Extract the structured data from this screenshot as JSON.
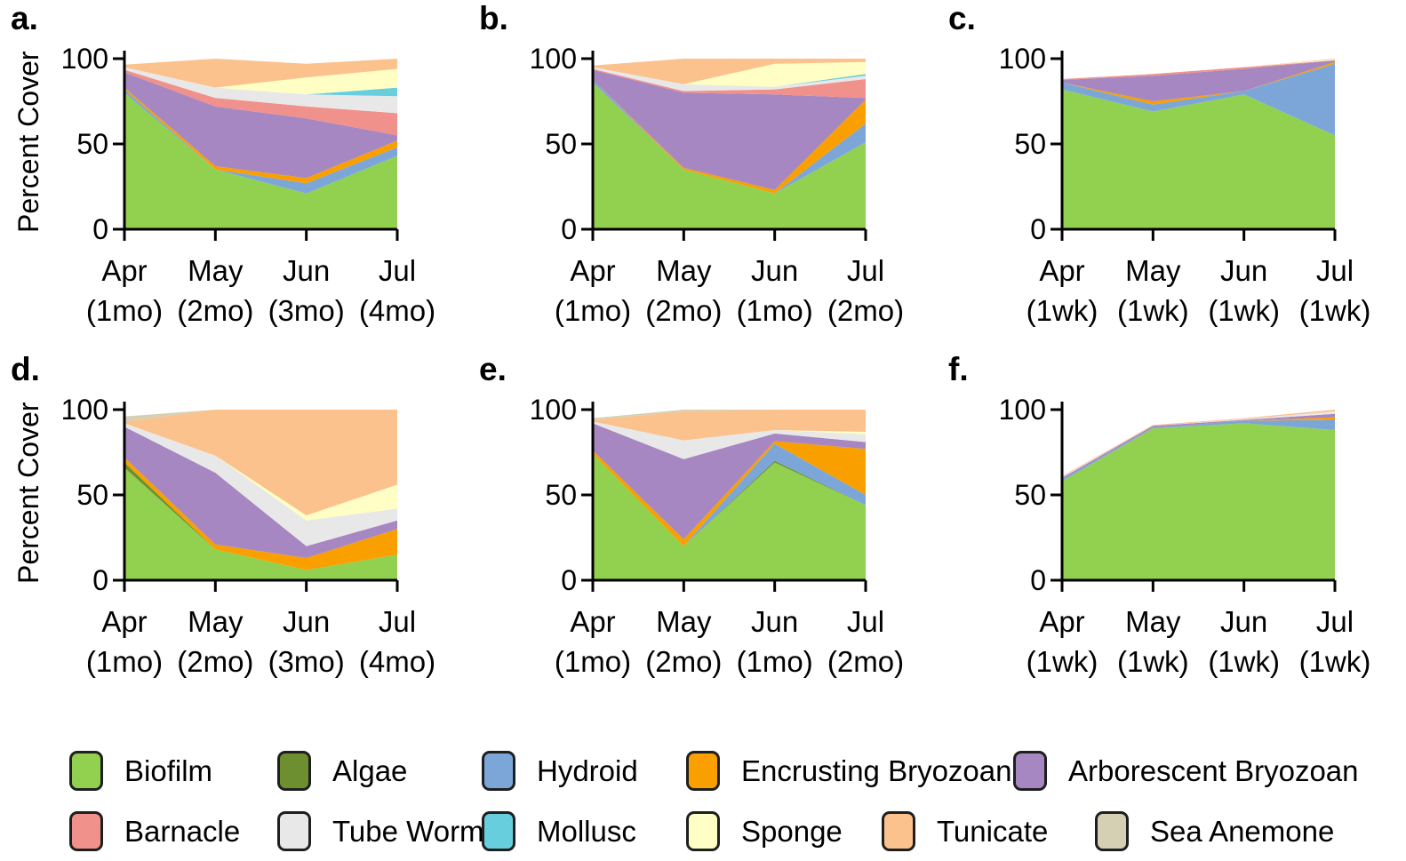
{
  "figure": {
    "ylabel": "Percent Cover",
    "yticks": [
      100,
      50,
      0
    ],
    "ylim": [
      0,
      100
    ]
  },
  "species": [
    "Biofilm",
    "Algae",
    "Hydroid",
    "Encrusting Bryozoan",
    "Arborescent Bryozoan",
    "Barnacle",
    "Tube Worm",
    "Mollusc",
    "Sponge",
    "Tunicate",
    "Sea Anemone"
  ],
  "colors": {
    "Biofilm": "#92D050",
    "Algae": "#6D8F2F",
    "Hydroid": "#7CA6D8",
    "Encrusting Bryozoan": "#F9A000",
    "Arborescent Bryozoan": "#A687C1",
    "Barnacle": "#F0918C",
    "Tube Worm": "#E8E8E8",
    "Mollusc": "#67CEDE",
    "Sponge": "#FFFFC5",
    "Tunicate": "#FBC28E",
    "Sea Anemone": "#D5D0B4",
    "axis": "#000000"
  },
  "legend": {
    "rows": [
      [
        "Biofilm",
        "Algae",
        "Hydroid",
        "Encrusting Bryozoan",
        "Arborescent Bryozoan"
      ],
      [
        "Barnacle",
        "Tube Worm",
        "Mollusc",
        "Sponge",
        "Tunicate",
        "Sea Anemone"
      ]
    ]
  },
  "chart_data": [
    {
      "label": "a.",
      "type": "area",
      "stacked": true,
      "categories": [
        "Apr",
        "May",
        "Jun",
        "Jul"
      ],
      "interval_labels": [
        "(1mo)",
        "(2mo)",
        "(3mo)",
        "(4mo)"
      ],
      "xlabel": "",
      "ylabel": "Percent Cover",
      "ylim": [
        0,
        100
      ],
      "series": [
        {
          "name": "Biofilm",
          "values": [
            80,
            35,
            21,
            43
          ]
        },
        {
          "name": "Algae",
          "values": [
            0,
            0,
            0,
            0
          ]
        },
        {
          "name": "Hydroid",
          "values": [
            2,
            0,
            6,
            5
          ]
        },
        {
          "name": "Encrusting Bryozoan",
          "values": [
            1,
            2,
            3,
            4
          ]
        },
        {
          "name": "Arborescent Bryozoan",
          "values": [
            9,
            35,
            35,
            3
          ]
        },
        {
          "name": "Barnacle",
          "values": [
            1.5,
            5,
            7,
            13
          ]
        },
        {
          "name": "Tube Worm",
          "values": [
            1.5,
            6,
            7,
            10
          ]
        },
        {
          "name": "Mollusc",
          "values": [
            0,
            0,
            0,
            5
          ]
        },
        {
          "name": "Sponge",
          "values": [
            0,
            0,
            10,
            11
          ]
        },
        {
          "name": "Tunicate",
          "values": [
            1.5,
            17,
            8,
            6
          ]
        },
        {
          "name": "Sea Anemone",
          "values": [
            0,
            0,
            0,
            0
          ]
        }
      ]
    },
    {
      "label": "b.",
      "type": "area",
      "stacked": true,
      "categories": [
        "Apr",
        "May",
        "Jun",
        "Jul"
      ],
      "interval_labels": [
        "(1mo)",
        "(2mo)",
        "(1mo)",
        "(2mo)"
      ],
      "xlabel": "",
      "ylabel": "Percent Cover",
      "ylim": [
        0,
        100
      ],
      "series": [
        {
          "name": "Biofilm",
          "values": [
            86,
            35,
            21,
            51
          ]
        },
        {
          "name": "Algae",
          "values": [
            0,
            0,
            0,
            0
          ]
        },
        {
          "name": "Hydroid",
          "values": [
            1.5,
            0,
            0,
            11
          ]
        },
        {
          "name": "Encrusting Bryozoan",
          "values": [
            0,
            1,
            2,
            14
          ]
        },
        {
          "name": "Arborescent Bryozoan",
          "values": [
            6,
            44,
            56,
            1
          ]
        },
        {
          "name": "Barnacle",
          "values": [
            0.5,
            1,
            3,
            11
          ]
        },
        {
          "name": "Tube Worm",
          "values": [
            1,
            4,
            1.5,
            2
          ]
        },
        {
          "name": "Mollusc",
          "values": [
            0,
            0,
            0,
            1
          ]
        },
        {
          "name": "Sponge",
          "values": [
            0,
            0,
            13.5,
            7
          ]
        },
        {
          "name": "Tunicate",
          "values": [
            1,
            15,
            3,
            2
          ]
        },
        {
          "name": "Sea Anemone",
          "values": [
            0,
            0,
            0,
            0
          ]
        }
      ]
    },
    {
      "label": "c.",
      "type": "area",
      "stacked": true,
      "categories": [
        "Apr",
        "May",
        "Jun",
        "Jul"
      ],
      "interval_labels": [
        "(1wk)",
        "(1wk)",
        "(1wk)",
        "(1wk)"
      ],
      "xlabel": "",
      "ylabel": "Percent Cover",
      "ylim": [
        0,
        100
      ],
      "series": [
        {
          "name": "Biofilm",
          "values": [
            82,
            69,
            79,
            55
          ]
        },
        {
          "name": "Algae",
          "values": [
            0,
            0,
            0,
            0
          ]
        },
        {
          "name": "Hydroid",
          "values": [
            4,
            4,
            2,
            42
          ]
        },
        {
          "name": "Encrusting Bryozoan",
          "values": [
            0,
            2,
            0,
            1
          ]
        },
        {
          "name": "Arborescent Bryozoan",
          "values": [
            1.5,
            15,
            13,
            1
          ]
        },
        {
          "name": "Barnacle",
          "values": [
            0.5,
            1,
            1,
            0
          ]
        },
        {
          "name": "Tube Worm",
          "values": [
            0,
            0,
            0,
            0
          ]
        },
        {
          "name": "Mollusc",
          "values": [
            0,
            0,
            0,
            0
          ]
        },
        {
          "name": "Sponge",
          "values": [
            0,
            0,
            0,
            0.5
          ]
        },
        {
          "name": "Tunicate",
          "values": [
            0,
            0,
            0,
            0.5
          ]
        },
        {
          "name": "Sea Anemone",
          "values": [
            0,
            0,
            0,
            0
          ]
        }
      ]
    },
    {
      "label": "d.",
      "type": "area",
      "stacked": true,
      "categories": [
        "Apr",
        "May",
        "Jun",
        "Jul"
      ],
      "interval_labels": [
        "(1mo)",
        "(2mo)",
        "(3mo)",
        "(4mo)"
      ],
      "xlabel": "",
      "ylabel": "Percent Cover",
      "ylim": [
        0,
        100
      ],
      "series": [
        {
          "name": "Biofilm",
          "values": [
            66,
            18,
            6,
            15
          ]
        },
        {
          "name": "Algae",
          "values": [
            3,
            0,
            0,
            0
          ]
        },
        {
          "name": "Hydroid",
          "values": [
            0,
            0,
            0,
            0
          ]
        },
        {
          "name": "Encrusting Bryozoan",
          "values": [
            3,
            3,
            7,
            15
          ]
        },
        {
          "name": "Arborescent Bryozoan",
          "values": [
            18,
            42,
            7,
            5
          ]
        },
        {
          "name": "Barnacle",
          "values": [
            0,
            0,
            0,
            0
          ]
        },
        {
          "name": "Tube Worm",
          "values": [
            2,
            10,
            15,
            7
          ]
        },
        {
          "name": "Mollusc",
          "values": [
            0,
            0,
            0,
            0
          ]
        },
        {
          "name": "Sponge",
          "values": [
            0,
            0,
            3,
            14
          ]
        },
        {
          "name": "Tunicate",
          "values": [
            1,
            27,
            62,
            44
          ]
        },
        {
          "name": "Sea Anemone",
          "values": [
            3,
            0,
            0,
            0
          ]
        }
      ]
    },
    {
      "label": "e.",
      "type": "area",
      "stacked": true,
      "categories": [
        "Apr",
        "May",
        "Jun",
        "Jul"
      ],
      "interval_labels": [
        "(1mo)",
        "(2mo)",
        "(1mo)",
        "(2mo)"
      ],
      "xlabel": "",
      "ylabel": "Percent Cover",
      "ylim": [
        0,
        100
      ],
      "series": [
        {
          "name": "Biofilm",
          "values": [
            74,
            20,
            69,
            44
          ]
        },
        {
          "name": "Algae",
          "values": [
            0,
            0,
            1,
            0
          ]
        },
        {
          "name": "Hydroid",
          "values": [
            0,
            0,
            10,
            6
          ]
        },
        {
          "name": "Encrusting Bryozoan",
          "values": [
            2,
            4,
            1.5,
            27
          ]
        },
        {
          "name": "Arborescent Bryozoan",
          "values": [
            16,
            47,
            4.5,
            4
          ]
        },
        {
          "name": "Barnacle",
          "values": [
            0,
            0,
            0,
            0
          ]
        },
        {
          "name": "Tube Worm",
          "values": [
            1,
            11,
            2,
            4.5
          ]
        },
        {
          "name": "Mollusc",
          "values": [
            0,
            0,
            0,
            0
          ]
        },
        {
          "name": "Sponge",
          "values": [
            0,
            0,
            0,
            1.5
          ]
        },
        {
          "name": "Tunicate",
          "values": [
            1,
            17,
            12,
            13
          ]
        },
        {
          "name": "Sea Anemone",
          "values": [
            1,
            1,
            0,
            0
          ]
        }
      ]
    },
    {
      "label": "f.",
      "type": "area",
      "stacked": true,
      "categories": [
        "Apr",
        "May",
        "Jun",
        "Jul"
      ],
      "interval_labels": [
        "(1wk)",
        "(1wk)",
        "(1wk)",
        "(1wk)"
      ],
      "xlabel": "",
      "ylabel": "Percent Cover",
      "ylim": [
        0,
        100
      ],
      "series": [
        {
          "name": "Biofilm",
          "values": [
            58,
            89,
            92,
            88
          ]
        },
        {
          "name": "Algae",
          "values": [
            0,
            0,
            0,
            0
          ]
        },
        {
          "name": "Hydroid",
          "values": [
            1,
            0.5,
            1.5,
            6
          ]
        },
        {
          "name": "Encrusting Bryozoan",
          "values": [
            0,
            0,
            0,
            1.5
          ]
        },
        {
          "name": "Arborescent Bryozoan",
          "values": [
            1,
            1,
            0.5,
            2
          ]
        },
        {
          "name": "Barnacle",
          "values": [
            0,
            0,
            0,
            0
          ]
        },
        {
          "name": "Tube Worm",
          "values": [
            0.5,
            0,
            0.5,
            1.5
          ]
        },
        {
          "name": "Mollusc",
          "values": [
            0,
            0,
            0,
            0
          ]
        },
        {
          "name": "Sponge",
          "values": [
            0,
            0,
            0,
            0
          ]
        },
        {
          "name": "Tunicate",
          "values": [
            0.5,
            0.5,
            0.5,
            1
          ]
        },
        {
          "name": "Sea Anemone",
          "values": [
            0,
            0,
            0,
            0
          ]
        }
      ]
    }
  ]
}
